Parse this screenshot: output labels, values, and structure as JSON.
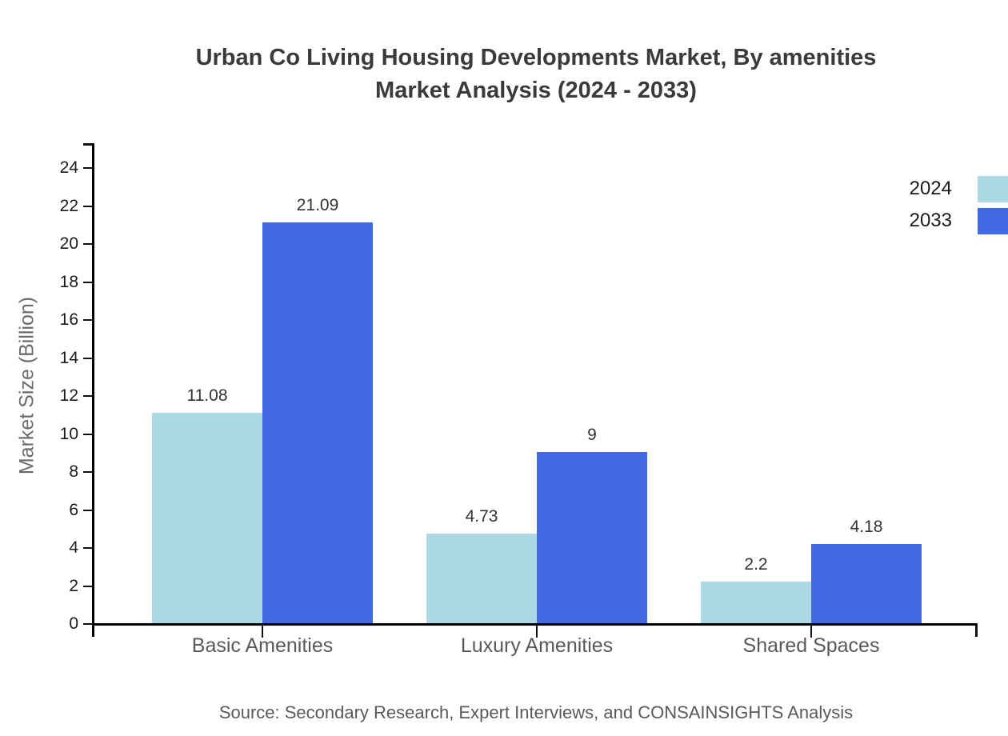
{
  "title": {
    "line1": "Urban Co Living Housing Developments Market, By amenities",
    "line2": "Market Analysis (2024 - 2033)"
  },
  "y_axis_label": "Market Size (Billion)",
  "source_text": "Source: Secondary Research, Expert Interviews, and CONSAINSIGHTS Analysis",
  "colors": {
    "series_2024": "#add8e6",
    "series_2033": "#4169e1",
    "axis": "#000000",
    "title_text": "#3a3a3a",
    "category_text": "#595959",
    "value_text": "#333333"
  },
  "legend": {
    "position": "top-right",
    "items": [
      {
        "label": "2024",
        "color": "#add8e6"
      },
      {
        "label": "2033",
        "color": "#4169e1"
      }
    ]
  },
  "chart_data": {
    "type": "bar",
    "title": "Urban Co Living Housing Developments Market, By amenities Market Analysis (2024 - 2033)",
    "categories": [
      "Basic Amenities",
      "Luxury Amenities",
      "Shared Spaces"
    ],
    "series": [
      {
        "name": "2024",
        "color": "#add8e6",
        "values": [
          11.08,
          4.73,
          2.2
        ],
        "value_labels": [
          "11.08",
          "4.73",
          "2.2"
        ]
      },
      {
        "name": "2033",
        "color": "#4169e1",
        "values": [
          21.09,
          9,
          4.18
        ],
        "value_labels": [
          "21.09",
          "9",
          "4.18"
        ]
      }
    ],
    "xlabel": "",
    "ylabel": "Market Size (Billion)",
    "ylim": [
      0,
      24
    ],
    "yticks": [
      0,
      2,
      4,
      6,
      8,
      10,
      12,
      14,
      16,
      18,
      20,
      22,
      24
    ],
    "grid": false,
    "legend_position": "top-right"
  }
}
